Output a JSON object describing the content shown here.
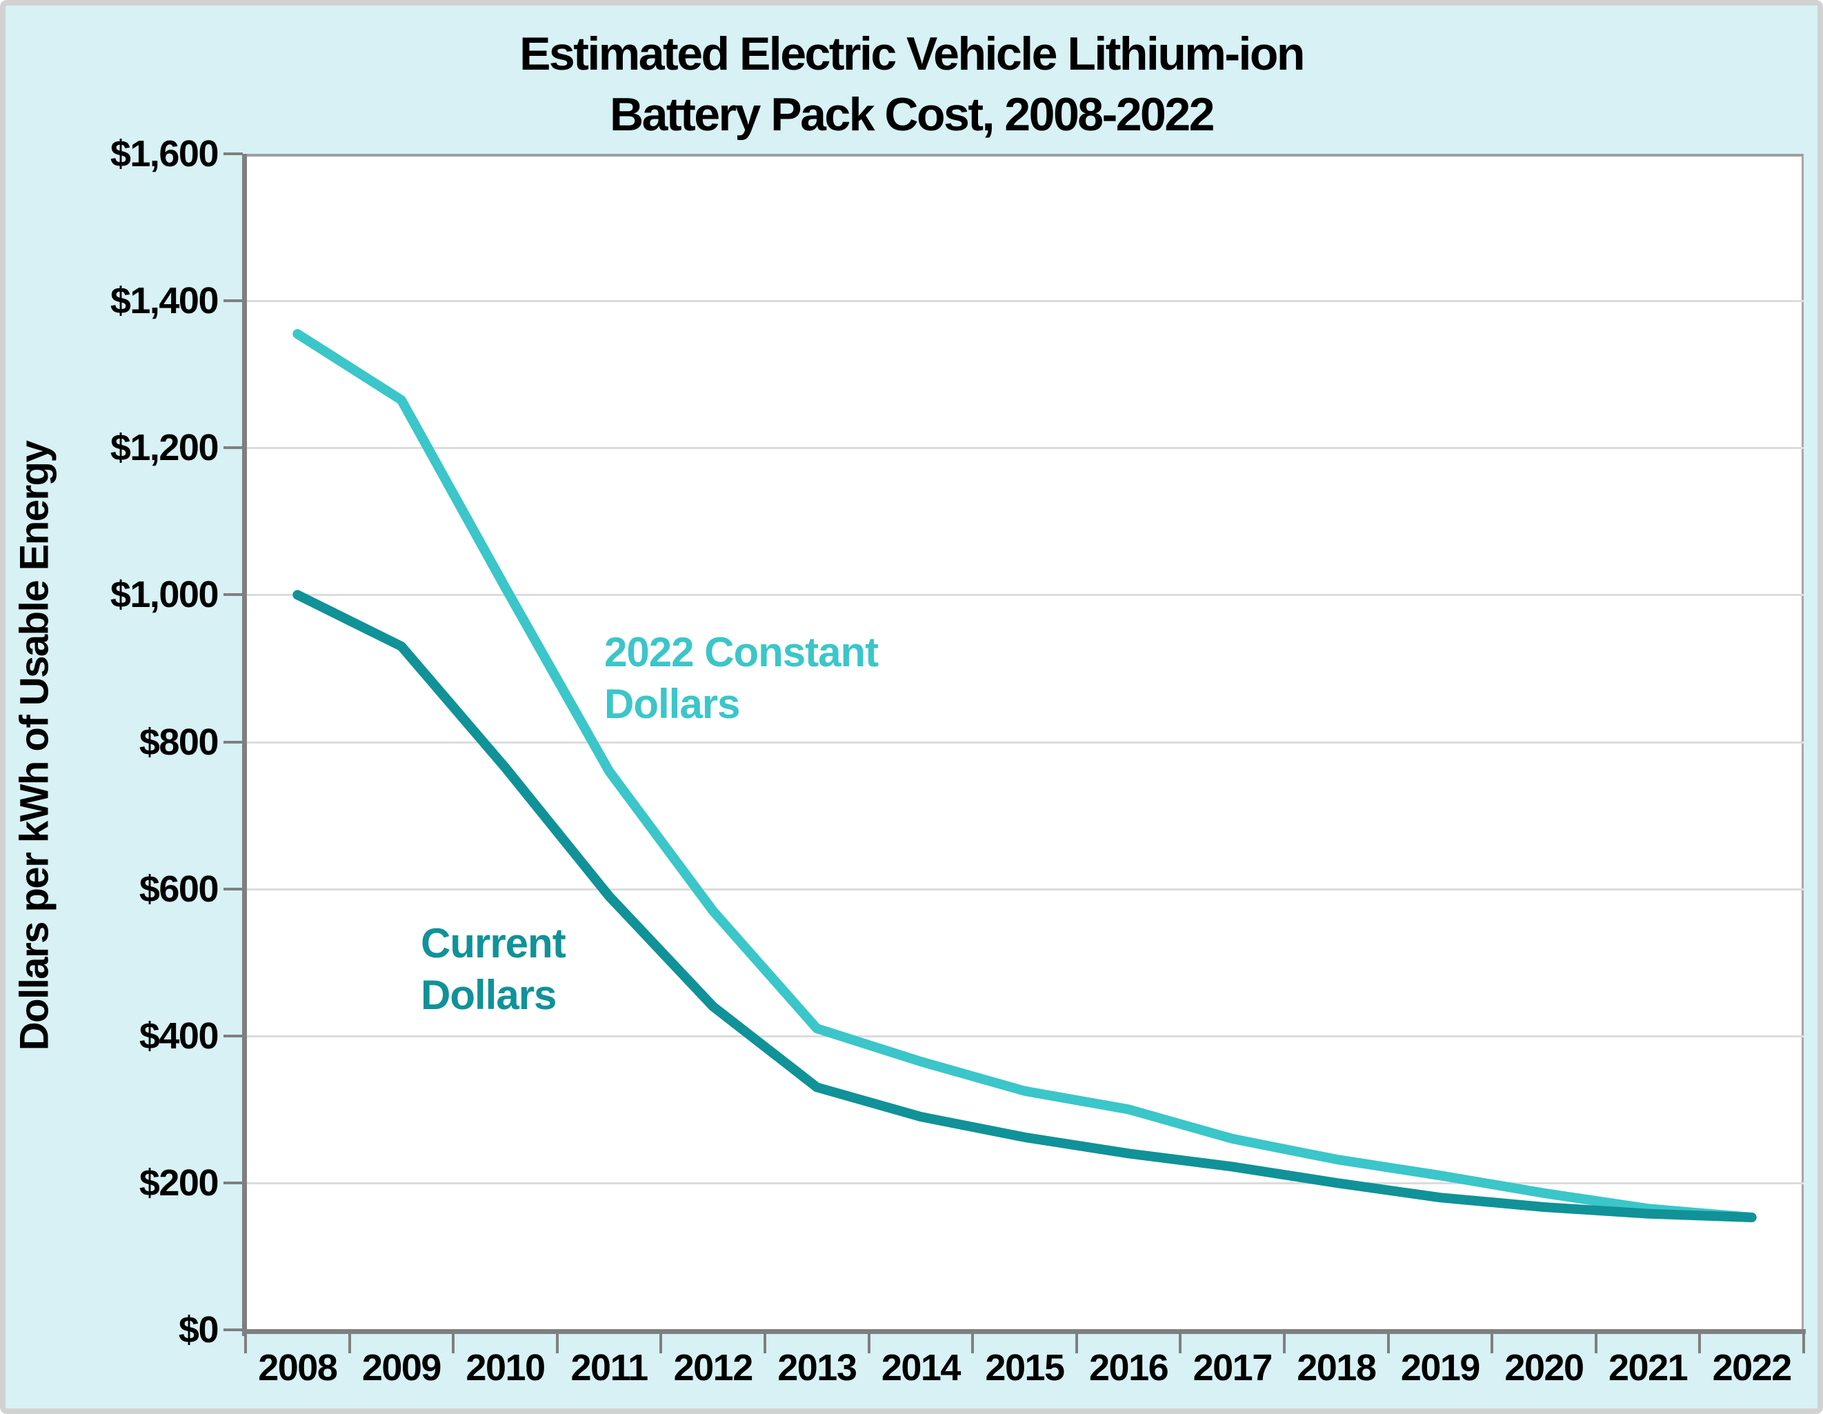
{
  "title": {
    "line1": "Estimated Electric Vehicle Lithium-ion",
    "line2": "Battery Pack Cost, 2008-2022"
  },
  "y_axis": {
    "title": "Dollars per kWh of Usable Energy",
    "tick_labels": [
      "$0",
      "$200",
      "$400",
      "$600",
      "$800",
      "$1,000",
      "$1,200",
      "$1,400",
      "$1,600"
    ],
    "min": 0,
    "max": 1600,
    "step": 200
  },
  "x_axis": {
    "tick_labels": [
      "2008",
      "2009",
      "2010",
      "2011",
      "2012",
      "2013",
      "2014",
      "2015",
      "2016",
      "2017",
      "2018",
      "2019",
      "2020",
      "2021",
      "2022"
    ]
  },
  "series_labels": {
    "constant": "2022 Constant Dollars",
    "current": "Current Dollars"
  },
  "colors": {
    "constant_series": "#3bc6c9",
    "current_series": "#109298",
    "background": "#d7f1f4",
    "plot_background": "#ffffff",
    "gridline": "#dcdcdc",
    "axis": "#7f7f7f",
    "text": "#000000"
  },
  "chart_data": {
    "type": "line",
    "title": "Estimated Electric Vehicle Lithium-ion Battery Pack Cost, 2008-2022",
    "x": [
      2008,
      2009,
      2010,
      2011,
      2012,
      2013,
      2014,
      2015,
      2016,
      2017,
      2018,
      2019,
      2020,
      2021,
      2022
    ],
    "series": [
      {
        "name": "2022 Constant Dollars",
        "color": "#3bc6c9",
        "values": [
          1355,
          1265,
          1010,
          760,
          570,
          410,
          365,
          325,
          300,
          260,
          232,
          210,
          186,
          165,
          153
        ]
      },
      {
        "name": "Current Dollars",
        "color": "#109298",
        "values": [
          1000,
          930,
          765,
          590,
          440,
          330,
          290,
          262,
          240,
          222,
          200,
          180,
          167,
          158,
          153
        ]
      }
    ],
    "xlabel": "",
    "ylabel": "Dollars per kWh of Usable Energy",
    "ylim": [
      0,
      1600
    ],
    "y_tick_step": 200,
    "grid": true,
    "legend_position": "inline-annotations"
  }
}
